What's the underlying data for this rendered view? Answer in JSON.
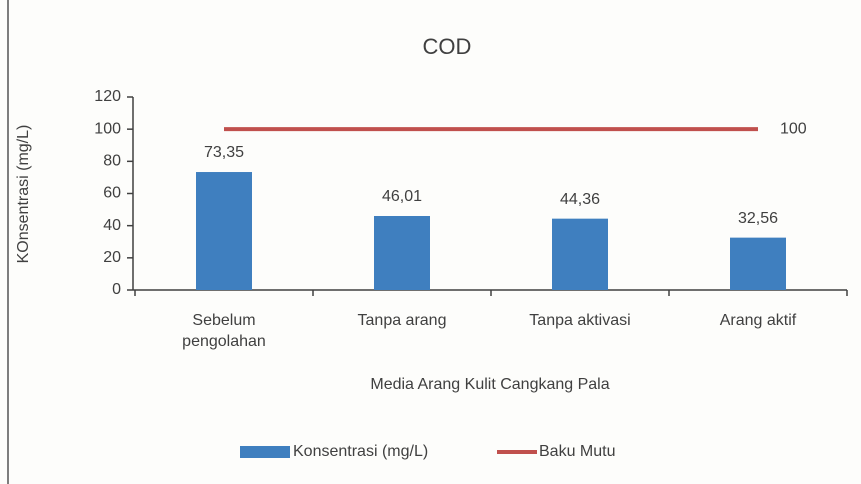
{
  "chart_data": {
    "type": "bar",
    "title": "COD",
    "x_label": "Media Arang Kulit Cangkang Pala",
    "y_label": "KOnsentrasi (mg/L)",
    "categories": [
      "Sebelum\npengolahan",
      "Tanpa arang",
      "Tanpa aktivasi",
      "Arang aktif"
    ],
    "series": [
      {
        "name": "Konsentrasi (mg/L)",
        "type": "bar",
        "color": "#3f7fbf",
        "values": [
          73.35,
          46.01,
          44.36,
          32.56
        ],
        "value_labels": [
          "73,35",
          "46,01",
          "44,36",
          "32,56"
        ]
      },
      {
        "name": "Baku Mutu",
        "type": "line",
        "color": "#c0504d",
        "values": [
          100,
          100,
          100,
          100
        ],
        "data_labels": "last"
      }
    ],
    "ylim": [
      0,
      120
    ],
    "yticks": [
      0,
      20,
      40,
      60,
      80,
      100,
      120
    ],
    "grid": false,
    "legend": "bottom"
  }
}
